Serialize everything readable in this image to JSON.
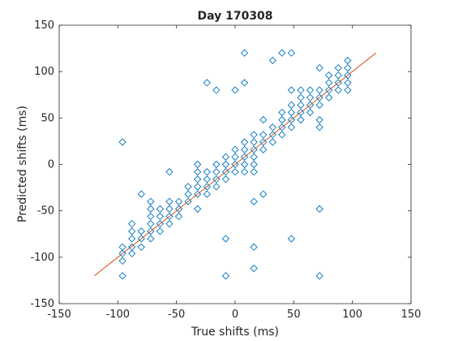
{
  "chart_data": {
    "type": "scatter",
    "title": "Day 170308",
    "xlabel": "True shifts (ms)",
    "ylabel": "Predicted shifts (ms)",
    "xlim": [
      -150,
      150
    ],
    "ylim": [
      -150,
      150
    ],
    "xticks": [
      -150,
      -100,
      -50,
      0,
      50,
      100,
      150
    ],
    "yticks": [
      -150,
      -100,
      -50,
      0,
      50,
      100,
      150
    ],
    "grid": false,
    "colors": {
      "marker": "#0072BD",
      "line": "#D95319"
    },
    "line": {
      "x": [
        -120,
        120
      ],
      "y": [
        -120,
        120
      ]
    },
    "points": [
      [
        -96,
        24
      ],
      [
        -96,
        -89
      ],
      [
        -96,
        -96
      ],
      [
        -96,
        -104
      ],
      [
        -96,
        -120
      ],
      [
        -88,
        -64
      ],
      [
        -88,
        -72
      ],
      [
        -88,
        -80
      ],
      [
        -88,
        -89
      ],
      [
        -88,
        -96
      ],
      [
        -80,
        -32
      ],
      [
        -80,
        -72
      ],
      [
        -80,
        -80
      ],
      [
        -80,
        -89
      ],
      [
        -72,
        -40
      ],
      [
        -72,
        -48
      ],
      [
        -72,
        -56
      ],
      [
        -72,
        -64
      ],
      [
        -72,
        -72
      ],
      [
        -72,
        -80
      ],
      [
        -64,
        -48
      ],
      [
        -64,
        -56
      ],
      [
        -64,
        -64
      ],
      [
        -64,
        -72
      ],
      [
        -56,
        -8
      ],
      [
        -56,
        -40
      ],
      [
        -56,
        -48
      ],
      [
        -56,
        -56
      ],
      [
        -56,
        -64
      ],
      [
        -48,
        -40
      ],
      [
        -48,
        -48
      ],
      [
        -48,
        -56
      ],
      [
        -40,
        -24
      ],
      [
        -40,
        -32
      ],
      [
        -40,
        -40
      ],
      [
        -32,
        0
      ],
      [
        -32,
        -8
      ],
      [
        -32,
        -16
      ],
      [
        -32,
        -24
      ],
      [
        -32,
        -32
      ],
      [
        -32,
        -48
      ],
      [
        -24,
        88
      ],
      [
        -24,
        -8
      ],
      [
        -24,
        -16
      ],
      [
        -24,
        -24
      ],
      [
        -24,
        -32
      ],
      [
        -16,
        80
      ],
      [
        -16,
        0
      ],
      [
        -16,
        -8
      ],
      [
        -16,
        -16
      ],
      [
        -16,
        -24
      ],
      [
        -8,
        8
      ],
      [
        -8,
        0
      ],
      [
        -8,
        -8
      ],
      [
        -8,
        -16
      ],
      [
        -8,
        -80
      ],
      [
        -8,
        -120
      ],
      [
        0,
        80
      ],
      [
        0,
        16
      ],
      [
        0,
        8
      ],
      [
        0,
        0
      ],
      [
        0,
        -8
      ],
      [
        8,
        120
      ],
      [
        8,
        88
      ],
      [
        8,
        24
      ],
      [
        8,
        16
      ],
      [
        8,
        8
      ],
      [
        8,
        0
      ],
      [
        8,
        -8
      ],
      [
        16,
        32
      ],
      [
        16,
        24
      ],
      [
        16,
        16
      ],
      [
        16,
        8
      ],
      [
        16,
        0
      ],
      [
        16,
        -8
      ],
      [
        16,
        -40
      ],
      [
        16,
        -89
      ],
      [
        16,
        -112
      ],
      [
        24,
        48
      ],
      [
        24,
        32
      ],
      [
        24,
        24
      ],
      [
        24,
        16
      ],
      [
        24,
        -32
      ],
      [
        32,
        112
      ],
      [
        32,
        40
      ],
      [
        32,
        32
      ],
      [
        32,
        24
      ],
      [
        40,
        120
      ],
      [
        40,
        56
      ],
      [
        40,
        48
      ],
      [
        40,
        40
      ],
      [
        40,
        32
      ],
      [
        48,
        120
      ],
      [
        48,
        80
      ],
      [
        48,
        64
      ],
      [
        48,
        56
      ],
      [
        48,
        48
      ],
      [
        48,
        40
      ],
      [
        48,
        -80
      ],
      [
        56,
        80
      ],
      [
        56,
        72
      ],
      [
        56,
        64
      ],
      [
        56,
        56
      ],
      [
        56,
        48
      ],
      [
        64,
        80
      ],
      [
        64,
        72
      ],
      [
        64,
        64
      ],
      [
        64,
        56
      ],
      [
        72,
        104
      ],
      [
        72,
        80
      ],
      [
        72,
        72
      ],
      [
        72,
        64
      ],
      [
        72,
        48
      ],
      [
        72,
        40
      ],
      [
        72,
        -48
      ],
      [
        72,
        -120
      ],
      [
        80,
        96
      ],
      [
        80,
        88
      ],
      [
        80,
        80
      ],
      [
        80,
        72
      ],
      [
        88,
        104
      ],
      [
        88,
        96
      ],
      [
        88,
        88
      ],
      [
        88,
        80
      ],
      [
        96,
        112
      ],
      [
        96,
        104
      ],
      [
        96,
        96
      ],
      [
        96,
        88
      ],
      [
        96,
        80
      ]
    ]
  }
}
